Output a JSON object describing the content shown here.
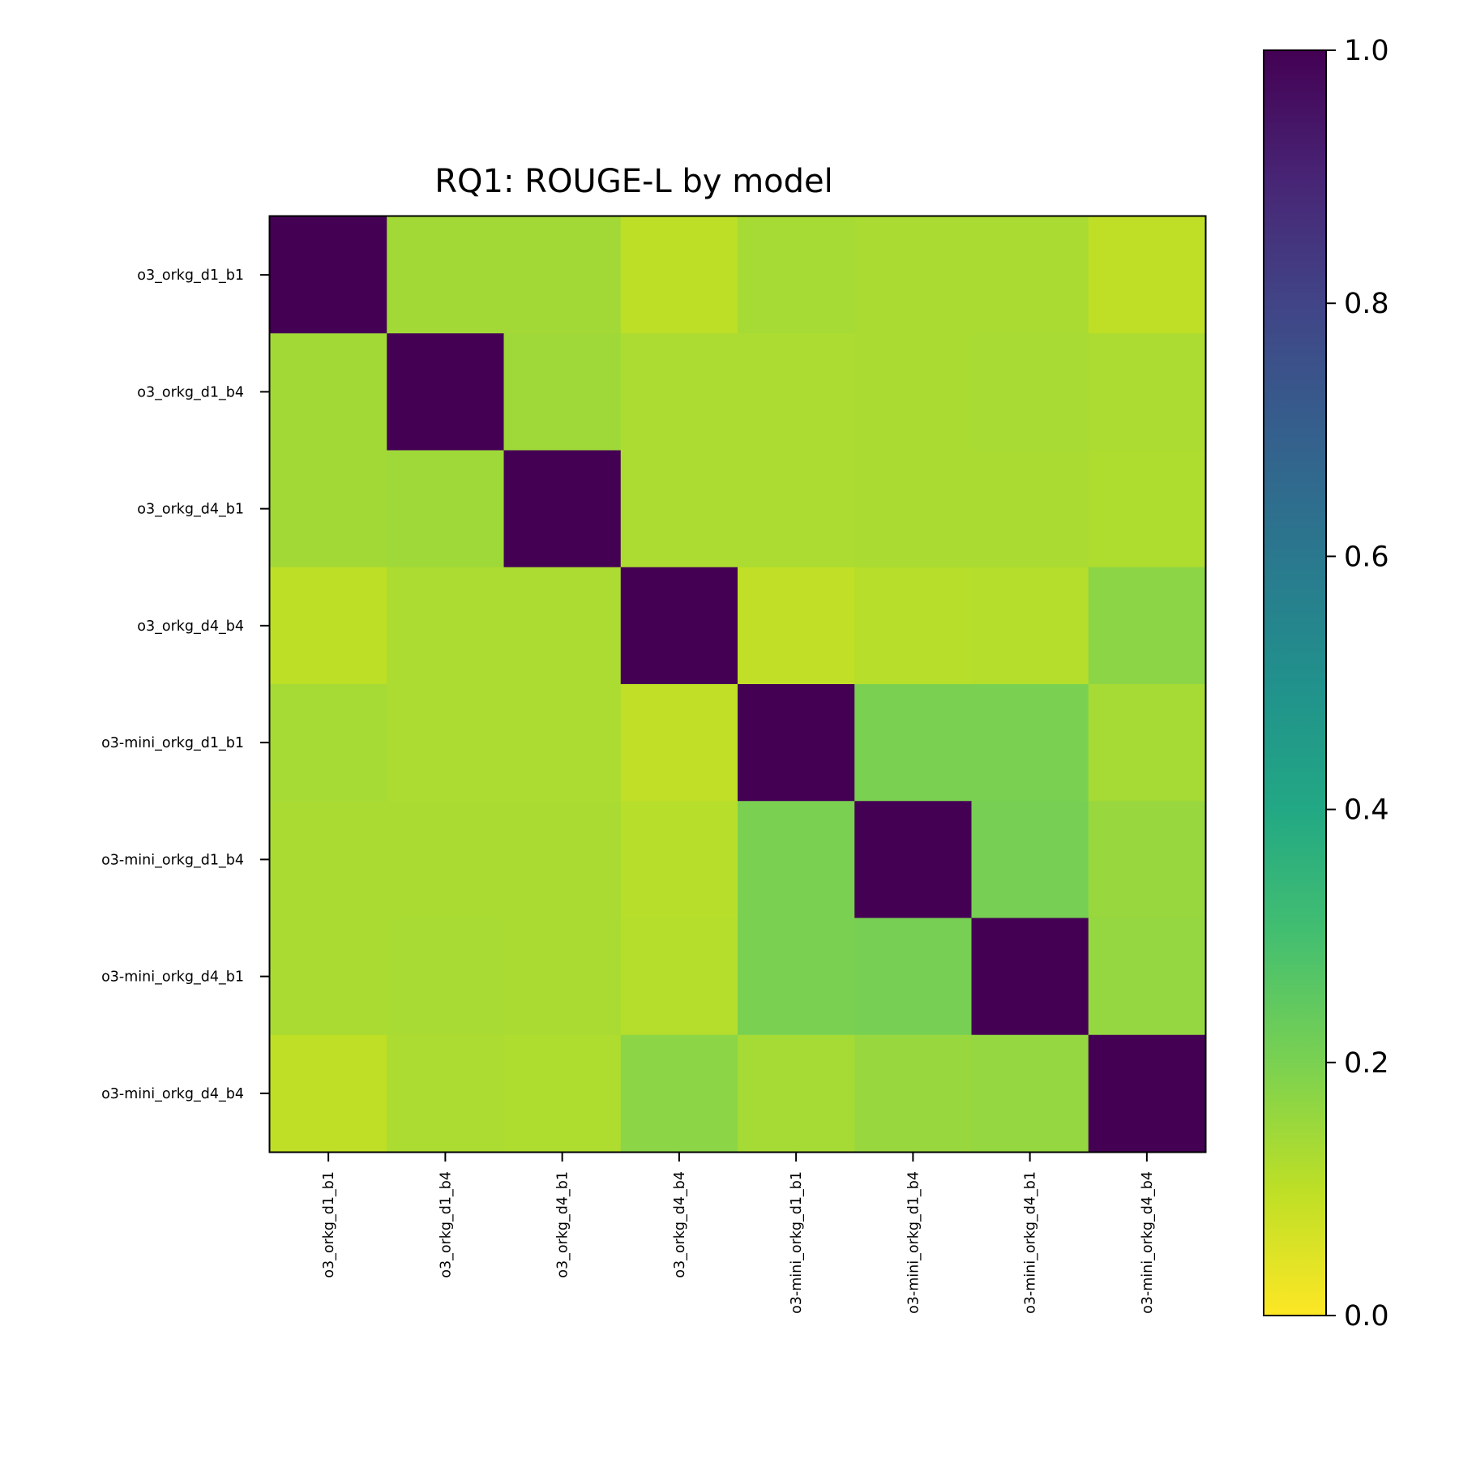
{
  "chart_data": {
    "type": "heatmap",
    "title": "RQ1: ROUGE-L by model",
    "xlabel": "",
    "ylabel": "",
    "rows": [
      "o3_orkg_d1_b1",
      "o3_orkg_d1_b4",
      "o3_orkg_d4_b1",
      "o3_orkg_d4_b4",
      "o3-mini_orkg_d1_b1",
      "o3-mini_orkg_d1_b4",
      "o3-mini_orkg_d4_b1",
      "o3-mini_orkg_d4_b4"
    ],
    "columns": [
      "o3_orkg_d1_b1",
      "o3_orkg_d1_b4",
      "o3_orkg_d4_b1",
      "o3_orkg_d4_b4",
      "o3-mini_orkg_d1_b1",
      "o3-mini_orkg_d1_b4",
      "o3-mini_orkg_d4_b1",
      "o3-mini_orkg_d4_b4"
    ],
    "values": [
      [
        1.0,
        0.14,
        0.14,
        0.1,
        0.135,
        0.13,
        0.128,
        0.098
      ],
      [
        0.14,
        1.0,
        0.145,
        0.125,
        0.125,
        0.13,
        0.132,
        0.125
      ],
      [
        0.14,
        0.145,
        1.0,
        0.125,
        0.125,
        0.13,
        0.13,
        0.122
      ],
      [
        0.1,
        0.125,
        0.125,
        1.0,
        0.095,
        0.11,
        0.112,
        0.175
      ],
      [
        0.135,
        0.125,
        0.125,
        0.095,
        1.0,
        0.2,
        0.2,
        0.135
      ],
      [
        0.13,
        0.13,
        0.13,
        0.11,
        0.2,
        1.0,
        0.205,
        0.155
      ],
      [
        0.128,
        0.132,
        0.13,
        0.112,
        0.2,
        0.205,
        1.0,
        0.16
      ],
      [
        0.098,
        0.125,
        0.122,
        0.175,
        0.135,
        0.155,
        0.16,
        1.0
      ]
    ],
    "colormap": "viridis_r",
    "colorbar": {
      "range": [
        0.0,
        1.0
      ],
      "ticks": [
        0.0,
        0.2,
        0.4,
        0.6,
        0.8,
        1.0
      ],
      "tick_labels": [
        "0.0",
        "0.2",
        "0.4",
        "0.6",
        "0.8",
        "1.0"
      ]
    },
    "grid": false
  }
}
